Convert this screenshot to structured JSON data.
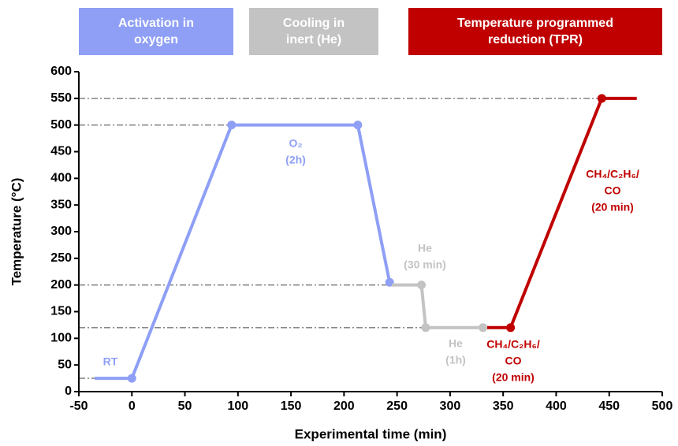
{
  "chart_data": {
    "type": "line",
    "x_label": "Experimental time (min)",
    "y_label": "Temperature (°C)",
    "xlim": [
      -50,
      500
    ],
    "ylim": [
      0,
      600
    ],
    "xticks": [
      -50,
      0,
      50,
      100,
      150,
      200,
      250,
      300,
      350,
      400,
      450,
      500
    ],
    "yticks": [
      0,
      50,
      100,
      150,
      200,
      250,
      300,
      350,
      400,
      450,
      500,
      550,
      600
    ],
    "phases": [
      {
        "lines": [
          "Activation in",
          "oxygen"
        ],
        "color": "#8e9ff5"
      },
      {
        "lines": [
          "Cooling in",
          "inert (He)"
        ],
        "color": "#c3c3c3"
      },
      {
        "lines": [
          "Temperature programmed",
          "reduction (TPR)"
        ],
        "color": "#c00000"
      }
    ],
    "reference_lines": [
      {
        "y": 550,
        "x": 443
      },
      {
        "y": 500,
        "x": 94
      },
      {
        "y": 200,
        "x": 245
      },
      {
        "y": 120,
        "x": 335
      },
      {
        "y": 25,
        "x": 0
      }
    ],
    "series": [
      {
        "color": "#8e9ff5",
        "x": [
          -35,
          0,
          94,
          213,
          243
        ],
        "values": [
          25,
          25,
          500,
          500,
          205
        ],
        "markers": [
          false,
          true,
          true,
          true,
          true
        ]
      },
      {
        "color": "#c3c3c3",
        "x": [
          245,
          273,
          277,
          331
        ],
        "values": [
          200,
          200,
          120,
          120
        ],
        "markers": [
          false,
          true,
          true,
          true
        ]
      },
      {
        "color": "#c00000",
        "x": [
          335,
          357,
          443,
          476
        ],
        "values": [
          120,
          120,
          550,
          550
        ],
        "markers": [
          false,
          true,
          true,
          false
        ]
      }
    ],
    "annotations": [
      {
        "lines": [
          "RT"
        ],
        "color": "#8e9ff5"
      },
      {
        "lines": [
          "O₂",
          "(2h)"
        ],
        "color": "#8e9ff5"
      },
      {
        "lines": [
          "He",
          "(30 min)"
        ],
        "color": "#c3c3c3"
      },
      {
        "lines": [
          "He",
          "(1h)"
        ],
        "color": "#c3c3c3"
      },
      {
        "lines": [
          "CH₄/C₂H₆/",
          "CO",
          "(20 min)"
        ],
        "color": "#c00000"
      },
      {
        "lines": [
          "CH₄/C₂H₆/",
          "CO",
          "(20 min)"
        ],
        "color": "#c00000"
      }
    ]
  }
}
